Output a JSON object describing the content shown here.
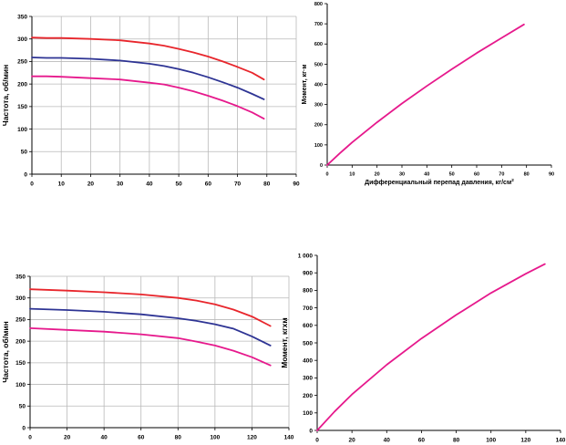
{
  "colors": {
    "red": "#e8262c",
    "navy": "#2e3494",
    "magenta": "#e6198c",
    "grid": "#b9b9b9"
  },
  "chart_data": [
    {
      "type": "line",
      "title": "",
      "xlabel": "",
      "ylabel": "Частота, об/мин",
      "xlim": [
        0,
        90
      ],
      "ylim": [
        0,
        350
      ],
      "xticks": [
        "0",
        "10",
        "20",
        "30",
        "40",
        "50",
        "60",
        "70",
        "80",
        "90"
      ],
      "yticks": [
        "0",
        "50",
        "100",
        "150",
        "200",
        "250",
        "300",
        "350"
      ],
      "grid": true,
      "series": [
        {
          "color": "red",
          "x": [
            0,
            5,
            10,
            20,
            30,
            40,
            45,
            50,
            55,
            60,
            65,
            70,
            75,
            79
          ],
          "y": [
            303,
            302,
            302,
            300,
            297,
            290,
            285,
            278,
            270,
            261,
            250,
            238,
            225,
            210
          ]
        },
        {
          "color": "navy",
          "x": [
            0,
            5,
            10,
            20,
            30,
            40,
            45,
            50,
            55,
            60,
            65,
            70,
            75,
            79
          ],
          "y": [
            259,
            258,
            258,
            256,
            252,
            245,
            240,
            233,
            225,
            215,
            204,
            192,
            178,
            166
          ]
        },
        {
          "color": "magenta",
          "x": [
            0,
            5,
            10,
            20,
            30,
            40,
            45,
            50,
            55,
            60,
            65,
            70,
            75,
            79
          ],
          "y": [
            217,
            217,
            216,
            213,
            210,
            203,
            199,
            192,
            184,
            174,
            163,
            151,
            137,
            123
          ]
        }
      ]
    },
    {
      "type": "line",
      "title": "",
      "xlabel": "Дифференциальный перепад давления, кг/см",
      "xlabel_sup": "2",
      "ylabel": "Момент, кг·м",
      "xlim": [
        0,
        90
      ],
      "ylim": [
        0,
        800
      ],
      "xticks": [
        "0",
        "10",
        "20",
        "30",
        "40",
        "50",
        "60",
        "70",
        "80",
        "90"
      ],
      "yticks": [
        "0",
        "100",
        "200",
        "300",
        "400",
        "500",
        "600",
        "700",
        "800"
      ],
      "grid": false,
      "series": [
        {
          "color": "magenta",
          "x": [
            0,
            5,
            10,
            20,
            30,
            40,
            50,
            60,
            70,
            79
          ],
          "y": [
            0,
            58,
            112,
            212,
            305,
            392,
            475,
            555,
            630,
            697
          ]
        }
      ]
    },
    {
      "type": "line",
      "title": "",
      "xlabel": "",
      "ylabel": "Частота, об/мин",
      "xlim": [
        0,
        140
      ],
      "ylim": [
        0,
        350
      ],
      "xticks": [
        "0",
        "20",
        "40",
        "60",
        "80",
        "100",
        "120",
        "140"
      ],
      "yticks": [
        "0",
        "50",
        "100",
        "150",
        "200",
        "250",
        "300",
        "350"
      ],
      "grid": true,
      "series": [
        {
          "color": "red",
          "x": [
            0,
            20,
            40,
            60,
            80,
            90,
            100,
            110,
            120,
            130
          ],
          "y": [
            320,
            317,
            313,
            308,
            300,
            294,
            285,
            273,
            257,
            235
          ]
        },
        {
          "color": "navy",
          "x": [
            0,
            20,
            40,
            60,
            80,
            90,
            100,
            110,
            120,
            130
          ],
          "y": [
            275,
            272,
            268,
            262,
            253,
            247,
            239,
            229,
            211,
            190
          ]
        },
        {
          "color": "magenta",
          "x": [
            0,
            20,
            40,
            60,
            80,
            90,
            100,
            110,
            120,
            130
          ],
          "y": [
            230,
            226,
            222,
            216,
            207,
            199,
            190,
            178,
            163,
            144
          ]
        }
      ]
    },
    {
      "type": "line",
      "title": "",
      "xlabel": "",
      "ylabel": "Момент, кгхм",
      "xlim": [
        0,
        140
      ],
      "ylim": [
        0,
        1000
      ],
      "xticks": [
        "0",
        "20",
        "40",
        "60",
        "80",
        "100",
        "120",
        "140"
      ],
      "yticks": [
        "0",
        "100",
        "200",
        "300",
        "400",
        "500",
        "600",
        "700",
        "800",
        "900",
        "1 000"
      ],
      "grid": false,
      "series": [
        {
          "color": "magenta",
          "x": [
            0,
            10,
            20,
            40,
            60,
            80,
            100,
            120,
            131
          ],
          "y": [
            0,
            108,
            205,
            375,
            525,
            660,
            785,
            895,
            950
          ]
        }
      ]
    }
  ]
}
